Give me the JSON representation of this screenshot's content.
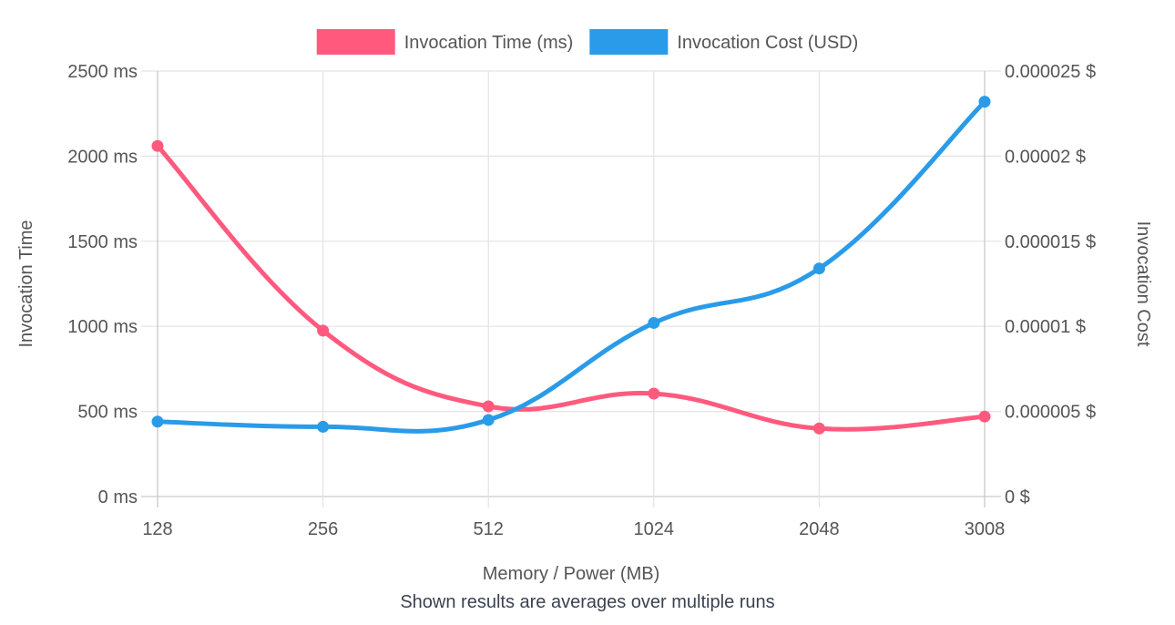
{
  "chart_data": {
    "type": "line",
    "categories": [
      "128",
      "256",
      "512",
      "1024",
      "2048",
      "3008"
    ],
    "series": [
      {
        "name": "Invocation Time (ms)",
        "axis": "left",
        "color": "#ff5a7e",
        "values": [
          2060,
          975,
          530,
          605,
          400,
          470
        ]
      },
      {
        "name": "Invocation Cost (USD)",
        "axis": "right",
        "color": "#2a9be8",
        "values": [
          4.4e-06,
          4.1e-06,
          4.5e-06,
          1.02e-05,
          1.34e-05,
          2.32e-05
        ]
      }
    ],
    "xlabel": "Memory / Power (MB)",
    "ylabel_left": "Invocation Time",
    "ylabel_right": "Invocation Cost",
    "ylim_left": [
      0,
      2500
    ],
    "ylim_right": [
      0,
      2.5e-05
    ],
    "yticks_left": [
      "0 ms",
      "500 ms",
      "1000 ms",
      "1500 ms",
      "2000 ms",
      "2500 ms"
    ],
    "yticks_right": [
      "0 $",
      "0.000005 $",
      "0.00001 $",
      "0.000015 $",
      "0.00002 $",
      "0.000025 $"
    ],
    "grid": true,
    "legend_position": "top",
    "smooth": true
  },
  "caption": "Shown results are averages over multiple runs"
}
